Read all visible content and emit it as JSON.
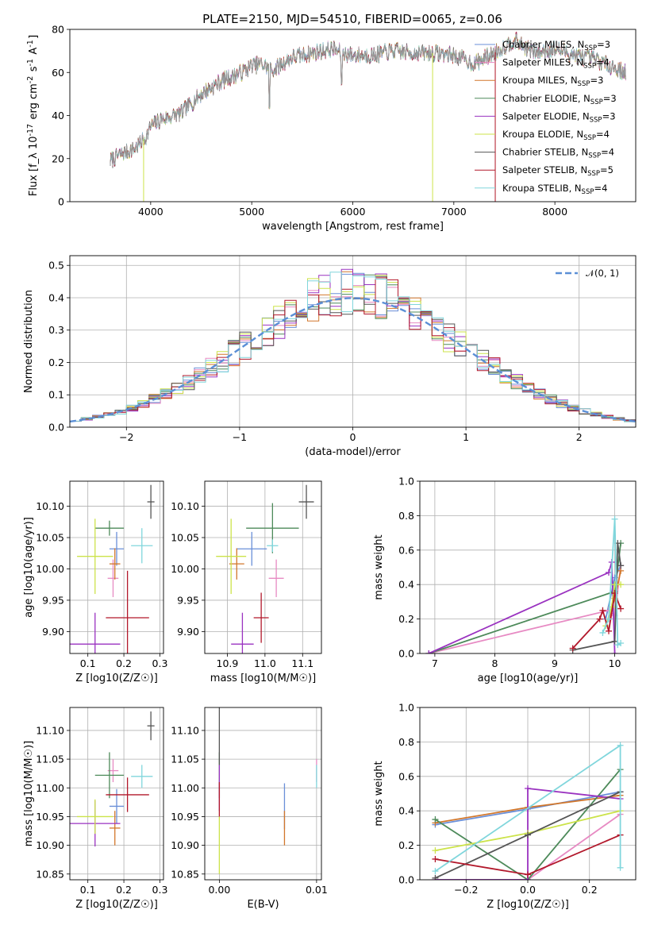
{
  "figure_title": "PLATE=2150, MJD=54510, FIBERID=0065, z=0.06",
  "colors": {
    "Chabrier MILES": "#6a8fd8",
    "Salpeter MILES": "#e78ac3",
    "Kroupa MILES": "#d2772b",
    "Chabrier ELODIE": "#4d8a5a",
    "Salpeter ELODIE": "#9a32c0",
    "Kroupa ELODIE": "#cce34a",
    "Chabrier STELIB": "#555555",
    "Salpeter STELIB": "#b2182b",
    "Kroupa STELIB": "#80d6dc",
    "gaussian": "#5b8fd6",
    "data": "#999999"
  },
  "chart_data": [
    {
      "type": "line",
      "panel": "spectrum",
      "xlabel": "wavelength [Angstrom, rest frame]",
      "ylabel": "Flux [f_λ 10^-17 erg cm^-2 s^-1 A^-1]",
      "xlim": [
        3200,
        8800
      ],
      "ylim": [
        0,
        80
      ],
      "xticks": [
        4000,
        5000,
        6000,
        7000,
        8000
      ],
      "yticks": [
        0,
        20,
        40,
        60,
        80
      ],
      "grid": false,
      "legend_position": "top-right",
      "legend": [
        {
          "name": "Chabrier MILES",
          "n_ssp": 3
        },
        {
          "name": "Salpeter MILES",
          "n_ssp": 4
        },
        {
          "name": "Kroupa MILES",
          "n_ssp": 3
        },
        {
          "name": "Chabrier ELODIE",
          "n_ssp": 3
        },
        {
          "name": "Salpeter ELODIE",
          "n_ssp": 3
        },
        {
          "name": "Kroupa ELODIE",
          "n_ssp": 4
        },
        {
          "name": "Chabrier STELIB",
          "n_ssp": 4
        },
        {
          "name": "Salpeter STELIB",
          "n_ssp": 5
        },
        {
          "name": "Kroupa STELIB",
          "n_ssp": 4
        }
      ],
      "continuum": {
        "x": [
          3600,
          3700,
          3850,
          3950,
          4000,
          4100,
          4300,
          4500,
          4700,
          4900,
          5000,
          5100,
          5200,
          5400,
          5600,
          5800,
          5900,
          6000,
          6200,
          6400,
          6600,
          6800,
          7000,
          7200,
          7400,
          7600,
          7800,
          8000,
          8200,
          8400,
          8600,
          8700
        ],
        "y": [
          19,
          22,
          25,
          30,
          35,
          38,
          41,
          50,
          56,
          60,
          63,
          64,
          61,
          67,
          69,
          71,
          69,
          68,
          68,
          70,
          69,
          69,
          68,
          64,
          69,
          75,
          69,
          71,
          68,
          66,
          62,
          60
        ]
      },
      "absorption_features": [
        {
          "x": 3930,
          "y": 0
        },
        {
          "x": 5175,
          "y": 44
        },
        {
          "x": 5890,
          "y": 55
        },
        {
          "x": 6790,
          "y": 0
        },
        {
          "x": 7410,
          "y": 0
        }
      ]
    },
    {
      "type": "histogram",
      "panel": "residuals",
      "xlabel": "(data-model)/error",
      "ylabel": "Normed distribution",
      "xlim": [
        -2.5,
        2.5
      ],
      "ylim": [
        0,
        0.53
      ],
      "xticks": [
        -2,
        -1,
        0,
        1,
        2
      ],
      "yticks": [
        0.0,
        0.1,
        0.2,
        0.3,
        0.4,
        0.5
      ],
      "grid": true,
      "legend_position": "top-right",
      "gaussian_label": "𝒩(0, 1)",
      "bin_width": 0.1,
      "bin_start": -2.5
    },
    {
      "type": "scatter",
      "panel": "age_vs_Z",
      "xlabel": "Z [log10(Z/Z☉)]",
      "ylabel": "age [log10(age/yr)]",
      "xlim": [
        0.05,
        0.31
      ],
      "ylim": [
        9.865,
        10.14
      ],
      "xticks": [
        0.1,
        0.2,
        0.3
      ],
      "yticks": [
        9.9,
        9.95,
        10.0,
        10.05,
        10.1
      ],
      "grid": true,
      "points": [
        {
          "series": "Chabrier MILES",
          "x": 0.18,
          "xerr": 0.02,
          "y": 10.032,
          "yerr": 0.027
        },
        {
          "series": "Salpeter MILES",
          "x": 0.17,
          "xerr": 0.015,
          "y": 9.985,
          "yerr": 0.03
        },
        {
          "series": "Kroupa MILES",
          "x": 0.175,
          "xerr": 0.015,
          "y": 10.008,
          "yerr": 0.025
        },
        {
          "series": "Chabrier ELODIE",
          "x": 0.16,
          "xerr": 0.04,
          "y": 10.065,
          "yerr": 0.012
        },
        {
          "series": "Salpeter ELODIE",
          "x": 0.12,
          "xerr": 0.07,
          "y": 9.88,
          "yerr": 0.05
        },
        {
          "series": "Kroupa ELODIE",
          "x": 0.12,
          "xerr": 0.05,
          "y": 10.02,
          "yerr": 0.06
        },
        {
          "series": "Chabrier STELIB",
          "x": 0.275,
          "xerr": 0.01,
          "y": 10.107,
          "yerr": 0.027
        },
        {
          "series": "Salpeter STELIB",
          "x": 0.21,
          "xerr": 0.06,
          "y": 9.922,
          "yerr": 0.075
        },
        {
          "series": "Kroupa STELIB",
          "x": 0.25,
          "xerr": 0.03,
          "y": 10.037,
          "yerr": 0.028
        }
      ]
    },
    {
      "type": "scatter",
      "panel": "age_vs_mass",
      "xlabel": "mass [log10(M/M☉)]",
      "ylabel": "",
      "xlim": [
        10.84,
        11.15
      ],
      "ylim": [
        9.865,
        10.14
      ],
      "xticks": [
        10.9,
        11.0,
        11.1
      ],
      "yticks": [
        9.9,
        9.95,
        10.0,
        10.05,
        10.1
      ],
      "grid": true,
      "points": [
        {
          "series": "Chabrier MILES",
          "x": 10.965,
          "xerr": 0.04,
          "y": 10.032,
          "yerr": 0.027
        },
        {
          "series": "Salpeter MILES",
          "x": 11.03,
          "xerr": 0.02,
          "y": 9.985,
          "yerr": 0.03
        },
        {
          "series": "Kroupa MILES",
          "x": 10.925,
          "xerr": 0.02,
          "y": 10.008,
          "yerr": 0.025
        },
        {
          "series": "Chabrier ELODIE",
          "x": 11.02,
          "xerr": 0.07,
          "y": 10.065,
          "yerr": 0.04
        },
        {
          "series": "Salpeter ELODIE",
          "x": 10.94,
          "xerr": 0.03,
          "y": 9.88,
          "yerr": 0.05
        },
        {
          "series": "Kroupa ELODIE",
          "x": 10.91,
          "xerr": 0.04,
          "y": 10.02,
          "yerr": 0.06
        },
        {
          "series": "Chabrier STELIB",
          "x": 11.11,
          "xerr": 0.02,
          "y": 10.107,
          "yerr": 0.027
        },
        {
          "series": "Salpeter STELIB",
          "x": 10.99,
          "xerr": 0.02,
          "y": 9.922,
          "yerr": 0.04
        },
        {
          "series": "Kroupa STELIB",
          "x": 11.02,
          "xerr": 0.015,
          "y": 10.037,
          "yerr": 0.01
        }
      ]
    },
    {
      "type": "line",
      "panel": "mass_weight_vs_age",
      "xlabel": "age [log10(age/yr)]",
      "ylabel": "mass weight",
      "xlim": [
        6.75,
        10.35
      ],
      "ylim": [
        0,
        1.0
      ],
      "xticks": [
        7,
        8,
        9,
        10
      ],
      "yticks": [
        0.0,
        0.2,
        0.4,
        0.6,
        0.8,
        1.0
      ],
      "grid": true,
      "series": [
        {
          "name": "Chabrier MILES",
          "x": [
            9.85,
            10.0,
            10.1
          ],
          "y": [
            0.2,
            0.44,
            0.51
          ]
        },
        {
          "name": "Salpeter MILES",
          "x": [
            6.9,
            9.9,
            10.0,
            10.1
          ],
          "y": [
            0.0,
            0.25,
            0.22,
            0.51
          ]
        },
        {
          "name": "Kroupa MILES",
          "x": [
            9.9,
            10.0,
            10.1
          ],
          "y": [
            0.2,
            0.32,
            0.48
          ]
        },
        {
          "name": "Chabrier ELODIE",
          "x": [
            6.9,
            10.0,
            10.1
          ],
          "y": [
            0.0,
            0.36,
            0.64
          ]
        },
        {
          "name": "Salpeter ELODIE",
          "x": [
            6.9,
            9.9,
            9.95,
            10.0
          ],
          "y": [
            0.0,
            0.47,
            0.53,
            0.0
          ]
        },
        {
          "name": "Kroupa ELODIE",
          "x": [
            9.85,
            9.95,
            10.0,
            10.1
          ],
          "y": [
            0.16,
            0.27,
            0.4,
            0.4
          ]
        },
        {
          "name": "Chabrier STELIB",
          "x": [
            9.3,
            10.0,
            10.05,
            10.1
          ],
          "y": [
            0.02,
            0.07,
            0.64,
            0.51
          ]
        },
        {
          "name": "Salpeter STELIB",
          "x": [
            9.3,
            9.75,
            9.8,
            9.9,
            10.0,
            10.1
          ],
          "y": [
            0.03,
            0.2,
            0.25,
            0.13,
            0.35,
            0.26
          ]
        },
        {
          "name": "Kroupa STELIB",
          "x": [
            9.8,
            9.9,
            10.0,
            10.05,
            10.1
          ],
          "y": [
            0.12,
            0.2,
            0.78,
            0.05,
            0.06
          ]
        }
      ]
    },
    {
      "type": "scatter",
      "panel": "mass_vs_Z",
      "xlabel": "Z [log10(Z/Z☉)]",
      "ylabel": "mass [log10(M/M☉)]",
      "xlim": [
        0.05,
        0.31
      ],
      "ylim": [
        10.84,
        11.14
      ],
      "xticks": [
        0.1,
        0.2,
        0.3
      ],
      "yticks": [
        10.85,
        10.9,
        10.95,
        11.0,
        11.05,
        11.1
      ],
      "grid": true,
      "points": [
        {
          "series": "Chabrier MILES",
          "x": 0.18,
          "xerr": 0.02,
          "y": 10.968,
          "yerr": 0.03
        },
        {
          "series": "Salpeter MILES",
          "x": 0.17,
          "xerr": 0.015,
          "y": 11.03,
          "yerr": 0.02
        },
        {
          "series": "Kroupa MILES",
          "x": 0.175,
          "xerr": 0.015,
          "y": 10.93,
          "yerr": 0.03
        },
        {
          "series": "Chabrier ELODIE",
          "x": 0.16,
          "xerr": 0.04,
          "y": 11.022,
          "yerr": 0.04
        },
        {
          "series": "Salpeter ELODIE",
          "x": 0.12,
          "xerr": 0.07,
          "y": 10.938,
          "yerr": 0.04
        },
        {
          "series": "Kroupa ELODIE",
          "x": 0.12,
          "xerr": 0.05,
          "y": 10.95,
          "yerr": 0.03
        },
        {
          "series": "Chabrier STELIB",
          "x": 0.275,
          "xerr": 0.01,
          "y": 11.108,
          "yerr": 0.025
        },
        {
          "series": "Salpeter STELIB",
          "x": 0.21,
          "xerr": 0.06,
          "y": 10.988,
          "yerr": 0.03
        },
        {
          "series": "Kroupa STELIB",
          "x": 0.25,
          "xerr": 0.03,
          "y": 11.02,
          "yerr": 0.02
        }
      ]
    },
    {
      "type": "scatter",
      "panel": "mass_vs_ebv",
      "xlabel": "E(B-V)",
      "ylabel": "",
      "xlim": [
        -0.0015,
        0.0105
      ],
      "ylim": [
        10.84,
        11.14
      ],
      "xticks": [
        0.0,
        0.01
      ],
      "yticks": [
        10.85,
        10.9,
        10.95,
        11.0,
        11.05,
        11.1
      ],
      "grid": true,
      "points": [
        {
          "series": "Chabrier MILES",
          "x": 0.0067,
          "yerr": 0.04,
          "y": 10.968
        },
        {
          "series": "Salpeter MILES",
          "x": 0.01,
          "yerr": 0.02,
          "y": 11.03
        },
        {
          "series": "Kroupa MILES",
          "x": 0.0067,
          "yerr": 0.03,
          "y": 10.93
        },
        {
          "series": "Chabrier ELODIE",
          "x": 0.0,
          "yerr": 0.04,
          "y": 11.022
        },
        {
          "series": "Salpeter ELODIE",
          "x": 0.0,
          "yerr": 0.04,
          "y": 11.0
        },
        {
          "series": "Kroupa ELODIE",
          "x": 0.0,
          "yerr": 0.05,
          "y": 10.9
        },
        {
          "series": "Chabrier STELIB",
          "x": 0.0,
          "yerr": 0.05,
          "y": 11.09
        },
        {
          "series": "Salpeter STELIB",
          "x": 0.0,
          "yerr": 0.03,
          "y": 10.98
        },
        {
          "series": "Kroupa STELIB",
          "x": 0.01,
          "yerr": 0.02,
          "y": 11.02
        }
      ]
    },
    {
      "type": "line",
      "panel": "mass_weight_vs_Z",
      "xlabel": "Z [log10(Z/Z☉)]",
      "ylabel": "mass weight",
      "xlim": [
        -0.35,
        0.35
      ],
      "ylim": [
        0,
        1.0
      ],
      "xticks": [
        -0.2,
        0.0,
        0.2
      ],
      "yticks": [
        0.0,
        0.2,
        0.4,
        0.6,
        0.8,
        1.0
      ],
      "grid": true,
      "series": [
        {
          "name": "Chabrier MILES",
          "x": [
            -0.3,
            0.0,
            0.3
          ],
          "y": [
            0.32,
            0.41,
            0.51
          ]
        },
        {
          "name": "Salpeter MILES",
          "x": [
            -0.3,
            0.0,
            0.3
          ],
          "y": [
            0.0,
            0.0,
            0.38
          ]
        },
        {
          "name": "Kroupa MILES",
          "x": [
            -0.3,
            0.0,
            0.3
          ],
          "y": [
            0.33,
            0.42,
            0.49
          ]
        },
        {
          "name": "Chabrier ELODIE",
          "x": [
            -0.3,
            0.0,
            0.3
          ],
          "y": [
            0.35,
            0.0,
            0.64
          ]
        },
        {
          "name": "Salpeter ELODIE",
          "x": [
            -0.3,
            0.0,
            0.0,
            0.3
          ],
          "y": [
            0.0,
            0.0,
            0.53,
            0.47
          ]
        },
        {
          "name": "Kroupa ELODIE",
          "x": [
            -0.3,
            0.0,
            0.3
          ],
          "y": [
            0.17,
            0.27,
            0.4
          ]
        },
        {
          "name": "Chabrier STELIB",
          "x": [
            -0.3,
            0.0,
            0.3
          ],
          "y": [
            0.01,
            0.26,
            0.51
          ]
        },
        {
          "name": "Salpeter STELIB",
          "x": [
            -0.3,
            0.0,
            0.3
          ],
          "y": [
            0.12,
            0.03,
            0.26
          ]
        },
        {
          "name": "Kroupa STELIB",
          "x": [
            -0.3,
            0.3,
            0.3
          ],
          "y": [
            0.05,
            0.78,
            0.07
          ]
        }
      ]
    }
  ]
}
